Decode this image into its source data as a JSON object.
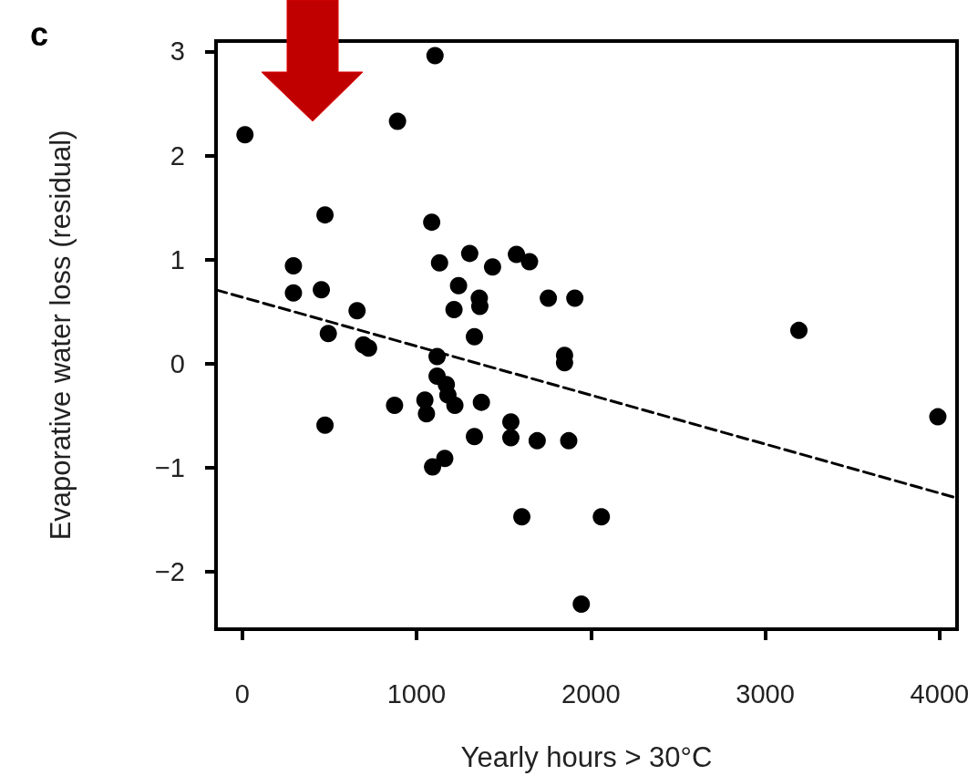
{
  "chart_data": {
    "type": "scatter",
    "title": "c",
    "xlabel": "Yearly hours > 30°C",
    "ylabel": "Evaporative water loss (residual)",
    "xlim": [
      -150,
      4100
    ],
    "ylim": [
      -2.55,
      3.1
    ],
    "xticks": [
      0,
      1000,
      2000,
      3000,
      4000
    ],
    "yticks": [
      {
        "value": -2,
        "label": "−2"
      },
      {
        "value": -1,
        "label": "−1"
      },
      0,
      1,
      2,
      3
    ],
    "grid": false,
    "marker": "circle",
    "series": [
      {
        "color": "#000000",
        "x": [
          16,
          1106,
          891,
          3193,
          3990,
          1945,
          1604,
          2060,
          475,
          1087,
          294,
          294,
          454,
          659,
          494,
          696,
          725,
          475,
          1132,
          1305,
          1436,
          1573,
          1648,
          1241,
          1360,
          1363,
          1215,
          1756,
          1908,
          1332,
          1849,
          1849,
          1118,
          1118,
          1171,
          1180,
          1220,
          1372,
          874,
          1048,
          1057,
          1541,
          1541,
          1332,
          1692,
          1873,
          1162,
          1092
        ],
        "values": [
          2.2,
          2.96,
          2.33,
          0.32,
          -0.51,
          -2.31,
          -1.47,
          -1.47,
          1.43,
          1.36,
          0.94,
          0.68,
          0.71,
          0.51,
          0.29,
          0.18,
          0.15,
          -0.59,
          0.97,
          1.06,
          0.93,
          1.05,
          0.98,
          0.75,
          0.63,
          0.55,
          0.52,
          0.63,
          0.63,
          0.26,
          0.08,
          0.01,
          0.07,
          -0.12,
          -0.2,
          -0.3,
          -0.4,
          -0.37,
          -0.4,
          -0.35,
          -0.48,
          -0.56,
          -0.71,
          -0.7,
          -0.74,
          -0.74,
          -0.91,
          -0.99
        ]
      },
      {
        "type": "line",
        "color": "#000000",
        "line_style": "dashed",
        "marker": "none",
        "x": [
          -150,
          4100
        ],
        "values": [
          0.71,
          -1.29
        ]
      }
    ]
  }
}
